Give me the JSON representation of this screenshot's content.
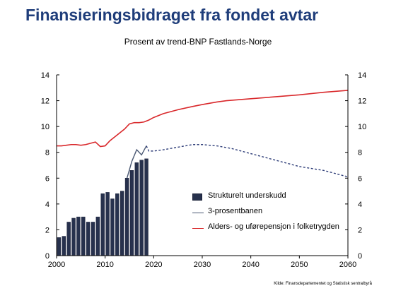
{
  "title": "Finansieringsbidraget fra fondet avtar",
  "subtitle": "Prosent av trend-BNP  Fastlands-Norge",
  "source": "Kilde: Finansdepartementet  og Statistisk sentralbyrå",
  "chart_data": {
    "type": "bar+line",
    "xlim": [
      2000,
      2060
    ],
    "ylim": [
      0,
      14
    ],
    "x_ticks": [
      2000,
      2010,
      2020,
      2030,
      2040,
      2050,
      2060
    ],
    "y_ticks": [
      0,
      2,
      4,
      6,
      8,
      10,
      12,
      14
    ],
    "dual_y_axis": true,
    "grid": false,
    "legend_position": "bottom-right",
    "colors": {
      "bars": "#27314d",
      "three_pct": "#4a5873",
      "pension": "#d9282b"
    },
    "legend": [
      "Strukturelt underskudd",
      "3-prosentbanen",
      "Alders- og uførepensjon i  folketrygden"
    ],
    "bars": {
      "name": "Strukturelt underskudd",
      "x": [
        2000,
        2001,
        2002,
        2003,
        2004,
        2005,
        2006,
        2007,
        2008,
        2009,
        2010,
        2011,
        2012,
        2013,
        2014,
        2015,
        2016,
        2017,
        2018
      ],
      "values": [
        1.4,
        1.5,
        2.6,
        2.9,
        3.0,
        3.0,
        2.6,
        2.6,
        3.0,
        4.8,
        4.9,
        4.4,
        4.8,
        5.0,
        6.0,
        6.6,
        7.2,
        7.4,
        7.5
      ]
    },
    "three_percent": {
      "name": "3-prosentbanen",
      "solid": {
        "x": [
          2014,
          2015,
          2016,
          2017,
          2018
        ],
        "values": [
          6.0,
          7.3,
          8.2,
          7.8,
          8.5
        ]
      },
      "dashed": {
        "x": [
          2018,
          2019,
          2020,
          2022,
          2025,
          2028,
          2030,
          2033,
          2036,
          2040,
          2045,
          2050,
          2055,
          2060
        ],
        "values": [
          8.5,
          8.1,
          8.1,
          8.2,
          8.4,
          8.6,
          8.6,
          8.5,
          8.3,
          7.9,
          7.4,
          6.9,
          6.6,
          6.1
        ]
      }
    },
    "pension": {
      "name": "Alders- og uførepensjon i  folketrygden",
      "x": [
        2000,
        2001,
        2002,
        2003,
        2004,
        2005,
        2006,
        2007,
        2008,
        2009,
        2010,
        2011,
        2012,
        2013,
        2014,
        2015,
        2016,
        2017,
        2018,
        2019,
        2020,
        2022,
        2025,
        2028,
        2030,
        2033,
        2035,
        2040,
        2045,
        2050,
        2055,
        2060
      ],
      "values": [
        8.5,
        8.5,
        8.55,
        8.6,
        8.6,
        8.55,
        8.6,
        8.7,
        8.8,
        8.45,
        8.5,
        8.9,
        9.2,
        9.5,
        9.8,
        10.2,
        10.3,
        10.3,
        10.35,
        10.5,
        10.7,
        11.0,
        11.3,
        11.55,
        11.7,
        11.9,
        12.0,
        12.15,
        12.3,
        12.45,
        12.65,
        12.8
      ]
    }
  }
}
